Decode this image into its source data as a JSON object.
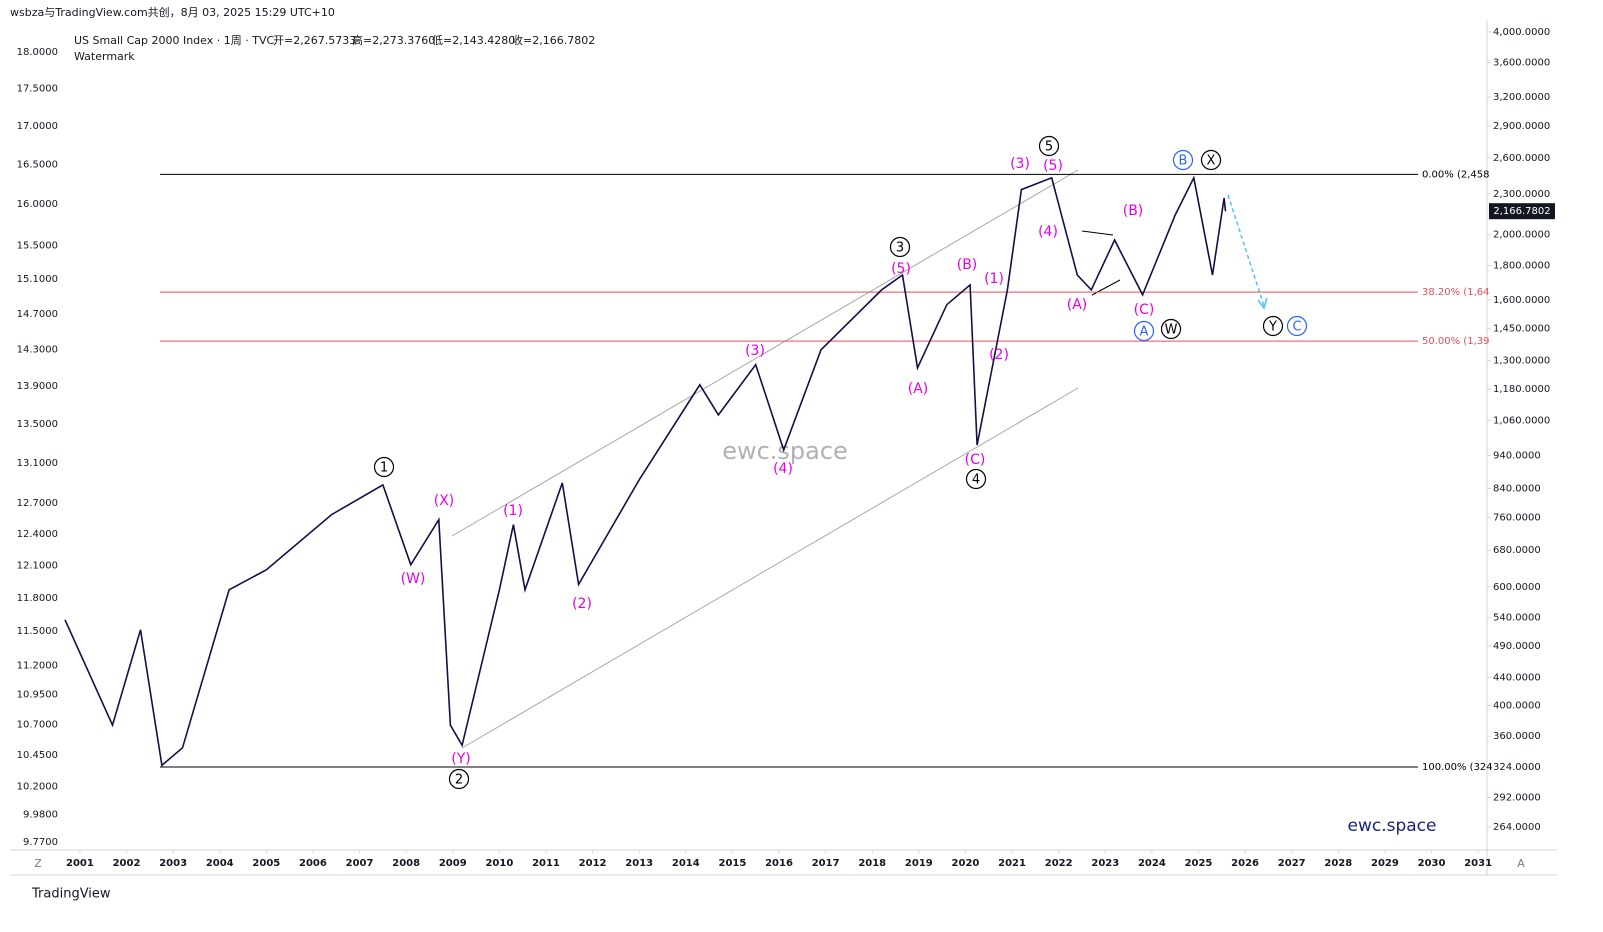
{
  "header": {
    "attribution": "wsbza与TradingView.com共创，8月 03, 2025 15:29 UTC+10",
    "symbol": "US Small Cap 2000 Index · 1周 · TVC",
    "open": "开=2,267.5733",
    "high": "高=2,273.3760",
    "low": "低=2,143.4280",
    "close": "收=2,166.7802",
    "watermark_label": "Watermark",
    "footer": "TradingView",
    "left_corner": "Z",
    "right_corner": "A"
  },
  "chart_data": {
    "type": "line",
    "log_scale": true,
    "grid": false,
    "color": "#131048",
    "watermark": "ewc.space",
    "brand": "ewc.space",
    "price_tag": "2,166.7802",
    "x": [
      2000.68,
      2001.7,
      2002.3,
      2002.76,
      2003.2,
      2004.2,
      2005,
      2006.4,
      2007.5,
      2008.1,
      2008.7,
      2008.95,
      2009.2,
      2010,
      2010.3,
      2010.55,
      2011.35,
      2011.7,
      2013,
      2014.3,
      2014.7,
      2015.5,
      2016.1,
      2016.9,
      2018.2,
      2018.65,
      2018.97,
      2019.6,
      2020.1,
      2020.25,
      2020.9,
      2021.2,
      2021.85,
      2022.4,
      2022.7,
      2023.2,
      2023.8,
      2024.5,
      2024.9,
      2025.3,
      2025.55,
      2025.58
    ],
    "series": [
      {
        "values": [
          536,
          374,
          518,
          326,
          346,
          594,
          636,
          768,
          850,
          647,
          755,
          374,
          349,
          594,
          742,
          594,
          856,
          605,
          865,
          1197,
          1080,
          1282,
          958,
          1349,
          1656,
          1742,
          1268,
          1574,
          1684,
          974,
          1656,
          2333,
          2429,
          1742,
          1656,
          1964,
          1628,
          2139,
          2429,
          1742,
          2267,
          2167
        ]
      }
    ],
    "xlim": [
      2000.68,
      2031.19
    ],
    "xticks": [
      2001,
      2002,
      2003,
      2004,
      2005,
      2006,
      2007,
      2008,
      2009,
      2010,
      2011,
      2012,
      2013,
      2014,
      2015,
      2016,
      2017,
      2018,
      2019,
      2020,
      2021,
      2022,
      2023,
      2024,
      2025,
      2026,
      2027,
      2028,
      2029,
      2030,
      2031
    ],
    "ylim": [
      244,
      4166
    ],
    "yticks": [
      {
        "value": 4000,
        "label": "4,000.0000"
      },
      {
        "value": 3600,
        "label": "3,600.0000"
      },
      {
        "value": 3200,
        "label": "3,200.0000"
      },
      {
        "value": 2900,
        "label": "2,900.0000"
      },
      {
        "value": 2600,
        "label": "2,600.0000"
      },
      {
        "value": 2300,
        "label": "2,300.0000"
      },
      {
        "value": 2000,
        "label": "2,000.0000"
      },
      {
        "value": 1800,
        "label": "1,800.0000"
      },
      {
        "value": 1600,
        "label": "1,600.0000"
      },
      {
        "value": 1450,
        "label": "1,450.0000"
      },
      {
        "value": 1300,
        "label": "1,300.0000"
      },
      {
        "value": 1180,
        "label": "1,180.0000"
      },
      {
        "value": 1060,
        "label": "1,060.0000"
      },
      {
        "value": 940,
        "label": "940.0000"
      },
      {
        "value": 840,
        "label": "840.0000"
      },
      {
        "value": 760,
        "label": "760.0000"
      },
      {
        "value": 680,
        "label": "680.0000"
      },
      {
        "value": 600,
        "label": "600.0000"
      },
      {
        "value": 540,
        "label": "540.0000"
      },
      {
        "value": 490,
        "label": "490.0000"
      },
      {
        "value": 440,
        "label": "440.0000"
      },
      {
        "value": 400,
        "label": "400.0000"
      },
      {
        "value": 360,
        "label": "360.0000"
      },
      {
        "value": 324,
        "label": "324.0000"
      },
      {
        "value": 292,
        "label": "292.0000"
      },
      {
        "value": 264,
        "label": "264.0000"
      }
    ],
    "y2lim": [
      9.71,
      18.45
    ],
    "y2ticks": [
      {
        "value": 18,
        "label": "18.0000"
      },
      {
        "value": 17.5,
        "label": "17.5000"
      },
      {
        "value": 17,
        "label": "17.0000"
      },
      {
        "value": 16.5,
        "label": "16.5000"
      },
      {
        "value": 16,
        "label": "16.0000"
      },
      {
        "value": 15.5,
        "label": "15.5000"
      },
      {
        "value": 15.1,
        "label": "15.1000"
      },
      {
        "value": 14.7,
        "label": "14.7000"
      },
      {
        "value": 14.3,
        "label": "14.3000"
      },
      {
        "value": 13.9,
        "label": "13.9000"
      },
      {
        "value": 13.5,
        "label": "13.5000"
      },
      {
        "value": 13.1,
        "label": "13.1000"
      },
      {
        "value": 12.7,
        "label": "12.7000"
      },
      {
        "value": 12.4,
        "label": "12.4000"
      },
      {
        "value": 12.1,
        "label": "12.1000"
      },
      {
        "value": 11.8,
        "label": "11.8000"
      },
      {
        "value": 11.5,
        "label": "11.5000"
      },
      {
        "value": 11.2,
        "label": "11.2000"
      },
      {
        "value": 10.95,
        "label": "10.9500"
      },
      {
        "value": 10.7,
        "label": "10.7000"
      },
      {
        "value": 10.45,
        "label": "10.4500"
      },
      {
        "value": 10.2,
        "label": "10.2000"
      },
      {
        "value": 9.98,
        "label": "9.9800"
      },
      {
        "value": 9.77,
        "label": "9.7700"
      }
    ],
    "levels": [
      {
        "label": "0.00% (2,458",
        "value": 2458,
        "color": "#000000"
      },
      {
        "label": "38.20% (1,64",
        "value": 1643,
        "color": "#e0505a"
      },
      {
        "label": "50.00% (1,39",
        "value": 1390,
        "color": "#e0505a"
      },
      {
        "label": "100.00% (324",
        "value": 324,
        "color": "#000000"
      }
    ],
    "wave_labels": [
      {
        "text": "1",
        "style": "circle",
        "color": "#000000"
      },
      {
        "text": "2",
        "style": "circle",
        "color": "#000000"
      },
      {
        "text": "3",
        "style": "circle",
        "color": "#000000"
      },
      {
        "text": "4",
        "style": "circle",
        "color": "#000000"
      },
      {
        "text": "5",
        "style": "circle",
        "color": "#000000"
      },
      {
        "text": "X",
        "style": "circle",
        "color": "#000000"
      },
      {
        "text": "W",
        "style": "circle",
        "color": "#000000"
      },
      {
        "text": "Y",
        "style": "circle",
        "color": "#000000"
      },
      {
        "text": "B",
        "style": "circle",
        "color": "#2962ff"
      },
      {
        "text": "A",
        "style": "circle",
        "color": "#2962ff"
      },
      {
        "text": "C",
        "style": "circle",
        "color": "#2962ff"
      },
      {
        "text": "(X)",
        "style": "plain",
        "color": "#e600e6"
      },
      {
        "text": "(W)",
        "style": "plain",
        "color": "#e600e6"
      },
      {
        "text": "(Y)",
        "style": "plain",
        "color": "#e600e6"
      },
      {
        "text": "(1)",
        "style": "plain",
        "color": "#e600e6"
      },
      {
        "text": "(2)",
        "style": "plain",
        "color": "#e600e6"
      },
      {
        "text": "(3)",
        "style": "plain",
        "color": "#e600e6"
      },
      {
        "text": "(4)",
        "style": "plain",
        "color": "#e600e6"
      },
      {
        "text": "(5)",
        "style": "plain",
        "color": "#e600e6"
      },
      {
        "text": "(A)",
        "style": "plain",
        "color": "#e600e6"
      },
      {
        "text": "(B)",
        "style": "plain",
        "color": "#e600e6"
      },
      {
        "text": "(C)",
        "style": "plain",
        "color": "#e600e6"
      },
      {
        "text": "(1)",
        "style": "plain",
        "color": "#e600e6"
      },
      {
        "text": "(2)",
        "style": "plain",
        "color": "#e600e6"
      },
      {
        "text": "(3)",
        "style": "plain",
        "color": "#e600e6"
      },
      {
        "text": "(5)",
        "style": "plain",
        "color": "#e600e6"
      },
      {
        "text": "(4)",
        "style": "plain",
        "color": "#e600e6"
      },
      {
        "text": "(A)",
        "style": "plain",
        "color": "#e600e6"
      },
      {
        "text": "(B)",
        "style": "plain",
        "color": "#e600e6"
      },
      {
        "text": "(C)",
        "style": "plain",
        "color": "#e600e6"
      }
    ]
  }
}
